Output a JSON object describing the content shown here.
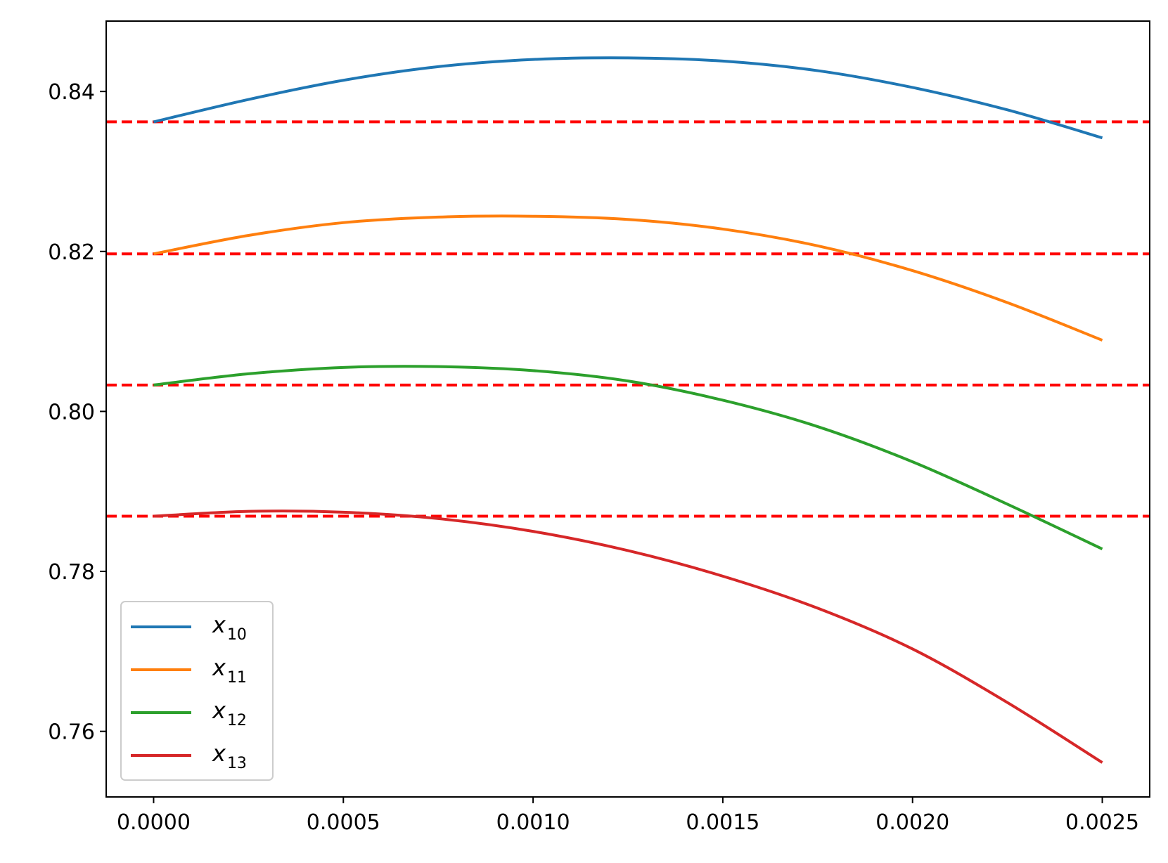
{
  "chart_data": {
    "type": "line",
    "title": "",
    "xlabel": "",
    "ylabel": "",
    "xlim": [
      -0.000125,
      0.002625
    ],
    "ylim": [
      0.7518,
      0.8488
    ],
    "x_ticks": [
      0.0,
      0.0005,
      0.001,
      0.0015,
      0.002,
      0.0025
    ],
    "x_tick_labels": [
      "0.0000",
      "0.0005",
      "0.0010",
      "0.0015",
      "0.0020",
      "0.0025"
    ],
    "y_ticks": [
      0.76,
      0.78,
      0.8,
      0.82,
      0.84
    ],
    "y_tick_labels": [
      "0.76",
      "0.78",
      "0.80",
      "0.82",
      "0.84"
    ],
    "grid": false,
    "legend_position": "lower-left",
    "x": [
      0.0,
      0.00025,
      0.0005,
      0.00075,
      0.001,
      0.00125,
      0.0015,
      0.00175,
      0.002,
      0.00225,
      0.0025
    ],
    "series": [
      {
        "name": "x10",
        "name_base": "x",
        "name_sub": "10",
        "color": "#1f77b4",
        "values": [
          0.8362,
          0.839,
          0.8414,
          0.8431,
          0.844,
          0.8442,
          0.8438,
          0.8426,
          0.8405,
          0.8377,
          0.8342
        ]
      },
      {
        "name": "x11",
        "name_base": "x",
        "name_sub": "11",
        "color": "#ff7f0e",
        "values": [
          0.8197,
          0.822,
          0.8236,
          0.8243,
          0.8244,
          0.824,
          0.8228,
          0.8207,
          0.8176,
          0.8136,
          0.8089
        ]
      },
      {
        "name": "x12",
        "name_base": "x",
        "name_sub": "12",
        "color": "#2ca02c",
        "values": [
          0.8033,
          0.8047,
          0.8055,
          0.8056,
          0.8051,
          0.8038,
          0.8014,
          0.7981,
          0.7937,
          0.7884,
          0.7828
        ]
      },
      {
        "name": "x13",
        "name_base": "x",
        "name_sub": "13",
        "color": "#d62728",
        "values": [
          0.7869,
          0.7875,
          0.7874,
          0.7866,
          0.785,
          0.7826,
          0.7794,
          0.7754,
          0.7703,
          0.7636,
          0.7561
        ]
      }
    ],
    "reference_lines": {
      "orientation": "horizontal",
      "style": "dashed",
      "color": "#ff0000",
      "values": [
        0.8362,
        0.8197,
        0.8033,
        0.7869
      ]
    }
  }
}
